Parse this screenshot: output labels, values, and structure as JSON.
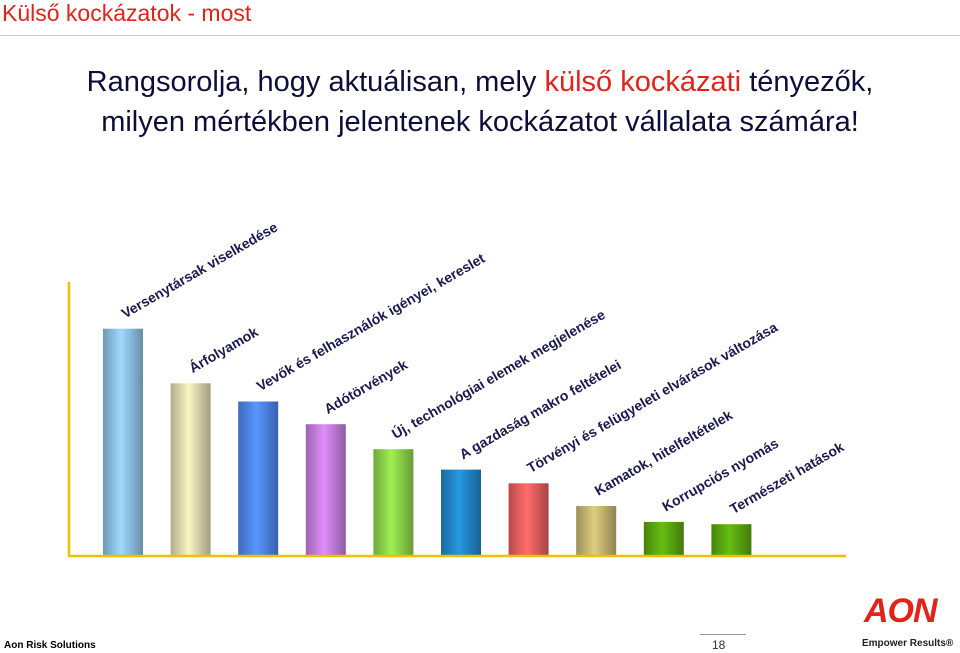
{
  "slide": {
    "title": "Külső kockázatok - most",
    "question_line1_pre": "Rangsorolja, hogy aktuálisan, mely ",
    "question_line1_highlight": "külső kockázati",
    "question_line1_post": " tényezők,",
    "question_line2": "milyen mértékben jelentenek kockázatot vállalata számára!",
    "footer_left": "Aon Risk Solutions",
    "page_number": "18",
    "logo_text": "AON",
    "tagline": "Empower Results®"
  },
  "colors": {
    "accent": "#e2231a",
    "axis": "#f0c000"
  },
  "chart_data": {
    "type": "bar",
    "categories": [
      "Versenytársak viselkedése",
      "Árfolyamok",
      "Vevők és felhasználók igényei, kereslet",
      "Adótörvények",
      "Új, technológiai elemek megjelenése",
      "A gazdaság makro feltételei",
      "Törvényi és felügyeleti elvárások változása",
      "Kamatok, hitelfeltételek",
      "Korrupciós nyomás",
      "Természeti hatások"
    ],
    "values": [
      100,
      76,
      68,
      58,
      47,
      38,
      32,
      22,
      15,
      14
    ],
    "colors": [
      "#8fc3e8",
      "#e0dcb0",
      "#4f86f0",
      "#c77fe0",
      "#8fd64a",
      "#2288cc",
      "#ea6060",
      "#c7b872",
      "#5aaa10",
      "#5aaa10"
    ],
    "ylim": [
      0,
      110
    ],
    "grid": false,
    "legend": "none"
  }
}
